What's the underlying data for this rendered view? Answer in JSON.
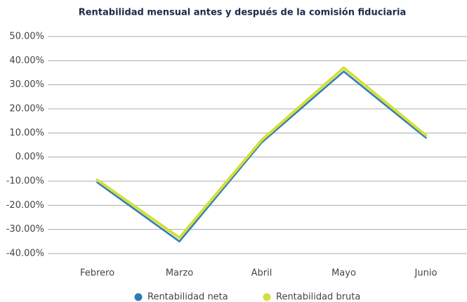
{
  "chart_data": {
    "type": "line",
    "title": "Rentabilidad mensual antes y después de la comisión fiduciaria",
    "categories": [
      "Febrero",
      "Marzo",
      "Abril",
      "Mayo",
      "Junio"
    ],
    "series": [
      {
        "name": "Rentabilidad neta",
        "color": "#2b7bba",
        "values": [
          -10.5,
          -35,
          6,
          35.5,
          8
        ]
      },
      {
        "name": "Rentabilidad bruta",
        "color": "#d4df3a",
        "values": [
          -9.5,
          -33.5,
          7,
          37,
          9
        ]
      }
    ],
    "ylim": [
      -40,
      50
    ],
    "yticks": [
      {
        "value": -40,
        "label": "-40.00%"
      },
      {
        "value": -30,
        "label": "-30.00%"
      },
      {
        "value": -20,
        "label": "-20.00%"
      },
      {
        "value": -10,
        "label": "-10.00%"
      },
      {
        "value": 0,
        "label": "0.00%"
      },
      {
        "value": 10,
        "label": "10.00%"
      },
      {
        "value": 20,
        "label": "20.00%"
      },
      {
        "value": 30,
        "label": "30.00%"
      },
      {
        "value": 40,
        "label": "40.00%"
      },
      {
        "value": 50,
        "label": "50.00%"
      }
    ],
    "grid": true,
    "legend": "bottom"
  }
}
